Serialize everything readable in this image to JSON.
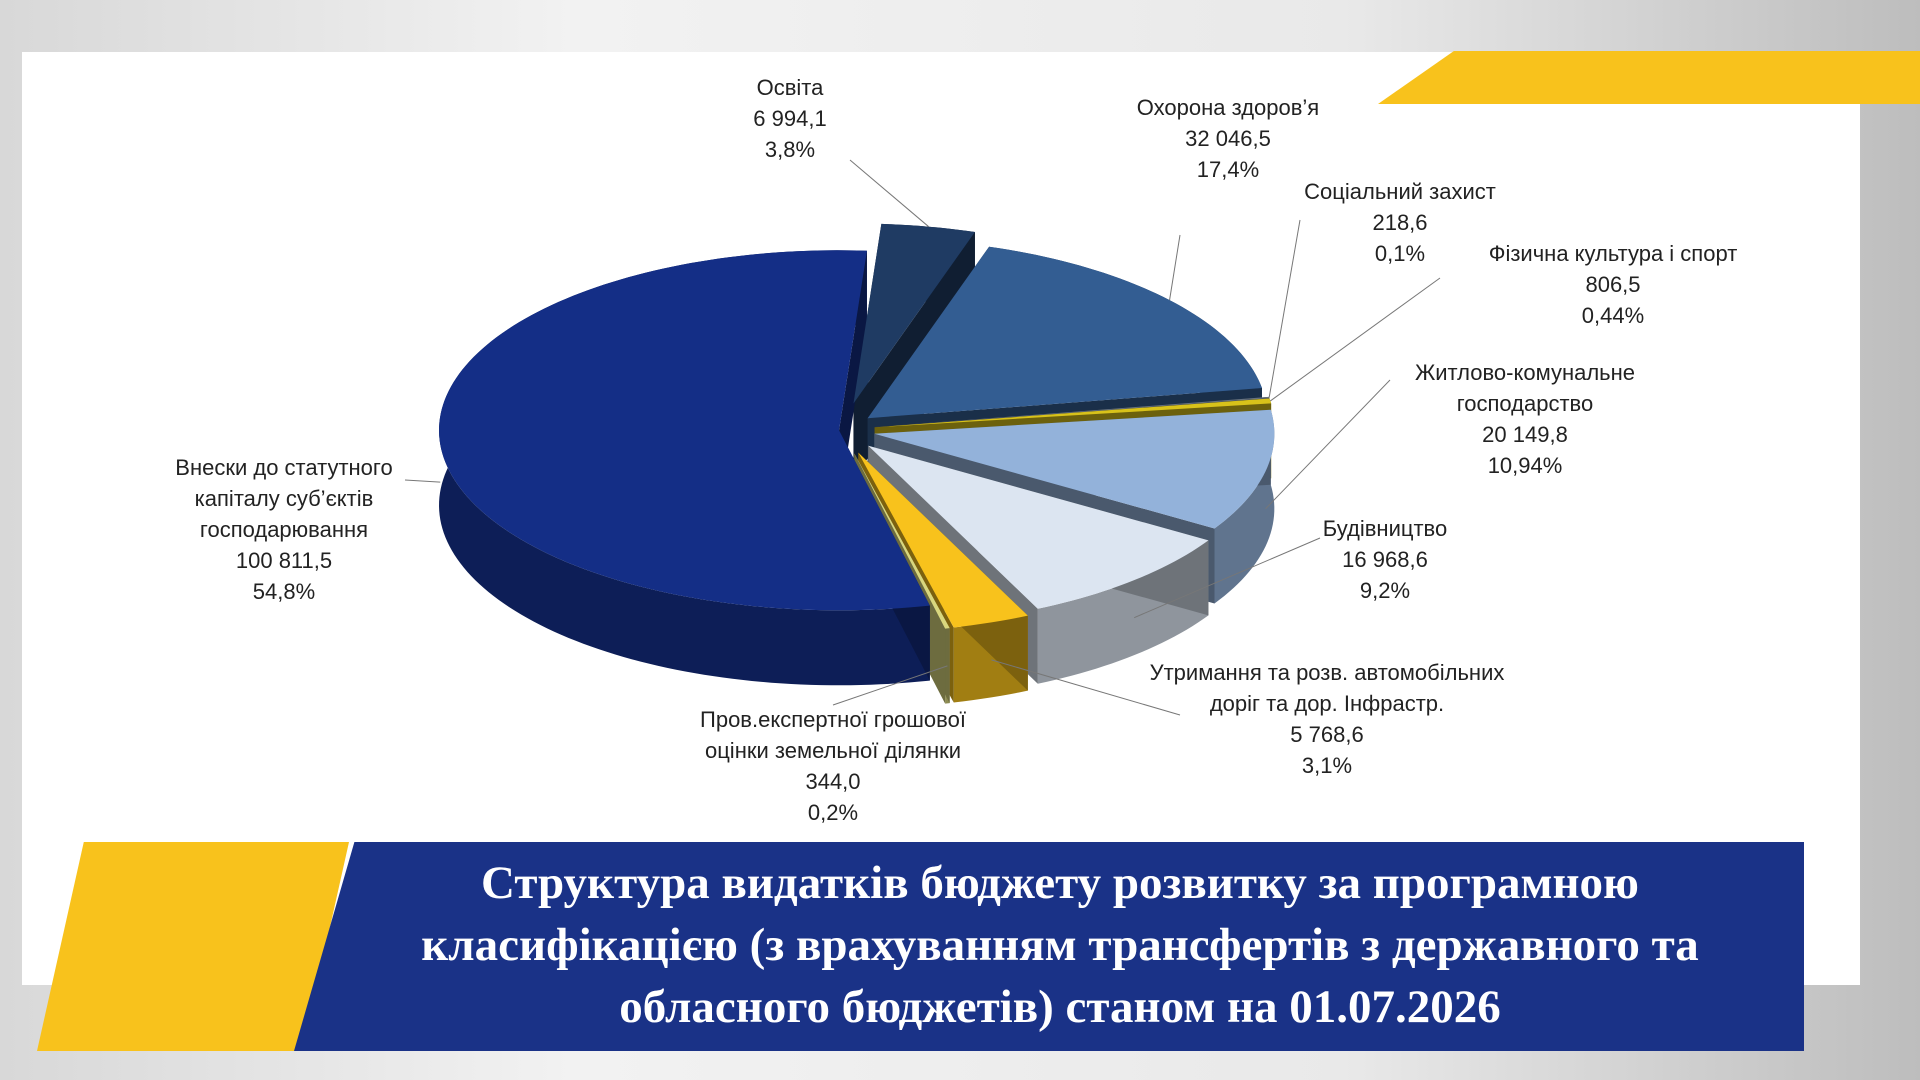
{
  "chart_data": {
    "type": "pie",
    "title": "Структура видатків бюджету розвитку за програмною класифікацією (з врахуванням трансфертів з державного та обласного бюджетів) станом на 01.07.2026",
    "categories": [
      "Освіта",
      "Охорона здоров’я",
      "Соціальний захист",
      "Фізична культура і спорт",
      "Житлово-комунальне господарство",
      "Будівництво",
      "Утримання та розв. автомобільних доріг та дор. Інфрастр.",
      "Пров.експертної  грошової оцінки  земельної ділянки",
      "Внески до статутного капіталу суб’єктів господарювання"
    ],
    "values": [
      6994.1,
      32046.5,
      218.6,
      806.5,
      20149.8,
      16968.6,
      5768.6,
      344.0,
      100811.5
    ],
    "value_labels": [
      "6 994,1",
      "32 046,5",
      "218,6",
      "806,5",
      "20 149,8",
      "16 968,6",
      "5 768,6",
      "344,0",
      "100 811,5"
    ],
    "percents": [
      3.8,
      17.4,
      0.1,
      0.44,
      10.94,
      9.2,
      3.1,
      0.2,
      54.8
    ],
    "percent_labels": [
      "3,8%",
      "17,4%",
      "0,1%",
      "0,44%",
      "10,94%",
      "9,2%",
      "3,1%",
      "0,2%",
      "54,8%"
    ],
    "colors": [
      "#1f3b63",
      "#335d92",
      "#66727f",
      "#d8c21a",
      "#93b2da",
      "#dce5f1",
      "#f8c21c",
      "#d9d77e",
      "#142e86"
    ]
  }
}
